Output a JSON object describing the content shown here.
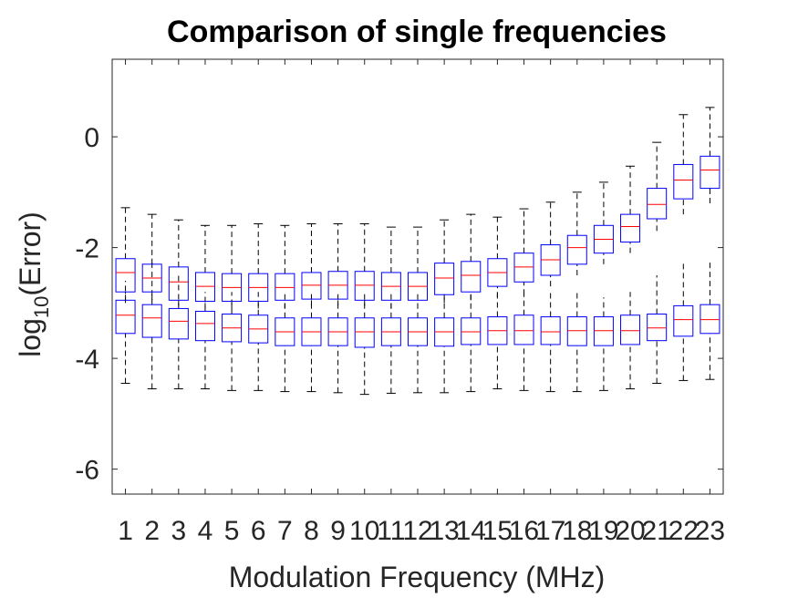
{
  "chart_data": {
    "type": "box",
    "title": "Comparison of single frequencies",
    "xlabel": "Modulation Frequency (MHz)",
    "ylabel_base": "log",
    "ylabel_sub": "10",
    "ylabel_rest": "(Error)",
    "categories": [
      "1",
      "2",
      "3",
      "4",
      "5",
      "6",
      "7",
      "8",
      "9",
      "10",
      "11",
      "12",
      "13",
      "14",
      "15",
      "16",
      "17",
      "18",
      "19",
      "20",
      "21",
      "22",
      "23"
    ],
    "ylim": [
      -6.45,
      1.4
    ],
    "yticks": [
      0,
      -2,
      -4,
      -6
    ],
    "ytick_labels": [
      "0",
      "-2",
      "-4",
      "-6"
    ],
    "colors": {
      "box": "#0000ff",
      "median": "#ff0000",
      "whisker": "#000000",
      "axis": "#262626"
    },
    "series": [
      {
        "boxes": [
          {
            "lw": -1.3,
            "q1": -2.8,
            "med": -2.45,
            "q3": -2.2,
            "uw": -1.28
          },
          {
            "lw": -1.4,
            "q1": -2.8,
            "med": -2.55,
            "q3": -2.3,
            "uw": -1.4
          },
          {
            "lw": -1.5,
            "q1": -2.95,
            "med": -2.62,
            "q3": -2.35,
            "uw": -1.5
          },
          {
            "lw": -1.6,
            "q1": -2.97,
            "med": -2.7,
            "q3": -2.45,
            "uw": -1.6
          },
          {
            "lw": -1.6,
            "q1": -2.97,
            "med": -2.72,
            "q3": -2.47,
            "uw": -1.6
          },
          {
            "lw": -1.6,
            "q1": -2.97,
            "med": -2.72,
            "q3": -2.47,
            "uw": -1.57
          },
          {
            "lw": -1.6,
            "q1": -2.95,
            "med": -2.72,
            "q3": -2.47,
            "uw": -1.6
          },
          {
            "lw": -1.6,
            "q1": -2.93,
            "med": -2.68,
            "q3": -2.45,
            "uw": -1.57
          },
          {
            "lw": -1.6,
            "q1": -2.93,
            "med": -2.68,
            "q3": -2.43,
            "uw": -1.57
          },
          {
            "lw": -1.6,
            "q1": -2.95,
            "med": -2.68,
            "q3": -2.43,
            "uw": -1.57
          },
          {
            "lw": -1.6,
            "q1": -2.95,
            "med": -2.7,
            "q3": -2.45,
            "uw": -1.63
          },
          {
            "lw": -1.6,
            "q1": -2.95,
            "med": -2.7,
            "q3": -2.45,
            "uw": -1.63
          },
          {
            "lw": -1.5,
            "q1": -2.85,
            "med": -2.55,
            "q3": -2.28,
            "uw": -1.5
          },
          {
            "lw": -1.4,
            "q1": -2.8,
            "med": -2.5,
            "q3": -2.25,
            "uw": -1.4
          },
          {
            "lw": -1.4,
            "q1": -2.7,
            "med": -2.45,
            "q3": -2.2,
            "uw": -1.45
          },
          {
            "lw": -1.3,
            "q1": -2.62,
            "med": -2.35,
            "q3": -2.1,
            "uw": -1.3
          },
          {
            "lw": -1.2,
            "q1": -2.5,
            "med": -2.22,
            "q3": -1.95,
            "uw": -1.18
          },
          {
            "lw": -1.0,
            "q1": -2.3,
            "med": -2.0,
            "q3": -1.78,
            "uw": -1.0
          },
          {
            "lw": -0.8,
            "q1": -2.1,
            "med": -1.85,
            "q3": -1.6,
            "uw": -0.82
          },
          {
            "lw": -0.5,
            "q1": -1.9,
            "med": -1.62,
            "q3": -1.4,
            "uw": -0.53
          },
          {
            "lw": -0.1,
            "q1": -1.48,
            "med": -1.22,
            "q3": -0.93,
            "uw": -0.1
          },
          {
            "lw": 0.4,
            "q1": -1.12,
            "med": -0.78,
            "q3": -0.5,
            "uw": 0.4
          },
          {
            "lw": 0.55,
            "q1": -0.93,
            "med": -0.6,
            "q3": -0.35,
            "uw": 0.53
          }
        ],
        "lower_whiskers": [
          -3.0,
          -2.95,
          -3.05,
          -3.1,
          -3.1,
          -3.1,
          -3.1,
          -3.05,
          -3.05,
          -3.05,
          -3.1,
          -3.1,
          -3.0,
          -2.95,
          -2.9,
          -2.85,
          -2.7,
          -2.5,
          -2.3,
          -2.1,
          -1.7,
          -1.4,
          -1.2
        ]
      },
      {
        "boxes": [
          {
            "q1": -3.55,
            "med": -3.22,
            "q3": -2.95
          },
          {
            "q1": -3.62,
            "med": -3.27,
            "q3": -3.03
          },
          {
            "q1": -3.65,
            "med": -3.33,
            "q3": -3.1
          },
          {
            "q1": -3.68,
            "med": -3.37,
            "q3": -3.15
          },
          {
            "q1": -3.7,
            "med": -3.45,
            "q3": -3.2
          },
          {
            "q1": -3.72,
            "med": -3.47,
            "q3": -3.22
          },
          {
            "q1": -3.77,
            "med": -3.52,
            "q3": -3.27
          },
          {
            "q1": -3.77,
            "med": -3.52,
            "q3": -3.27
          },
          {
            "q1": -3.77,
            "med": -3.52,
            "q3": -3.27
          },
          {
            "q1": -3.8,
            "med": -3.52,
            "q3": -3.27
          },
          {
            "q1": -3.77,
            "med": -3.52,
            "q3": -3.27
          },
          {
            "q1": -3.77,
            "med": -3.52,
            "q3": -3.27
          },
          {
            "q1": -3.78,
            "med": -3.52,
            "q3": -3.27
          },
          {
            "q1": -3.75,
            "med": -3.52,
            "q3": -3.27
          },
          {
            "q1": -3.75,
            "med": -3.5,
            "q3": -3.25
          },
          {
            "q1": -3.75,
            "med": -3.5,
            "q3": -3.22
          },
          {
            "q1": -3.75,
            "med": -3.52,
            "q3": -3.25
          },
          {
            "q1": -3.77,
            "med": -3.5,
            "q3": -3.25
          },
          {
            "q1": -3.77,
            "med": -3.5,
            "q3": -3.25
          },
          {
            "q1": -3.75,
            "med": -3.5,
            "q3": -3.22
          },
          {
            "q1": -3.68,
            "med": -3.45,
            "q3": -3.2
          },
          {
            "q1": -3.6,
            "med": -3.3,
            "q3": -3.05
          },
          {
            "q1": -3.55,
            "med": -3.3,
            "q3": -3.03
          }
        ],
        "lower_whiskers": [
          -4.45,
          -4.55,
          -4.55,
          -4.55,
          -4.58,
          -4.58,
          -4.6,
          -4.6,
          -4.62,
          -4.65,
          -4.63,
          -4.62,
          -4.62,
          -4.6,
          -4.55,
          -4.58,
          -4.6,
          -4.6,
          -4.58,
          -4.55,
          -4.45,
          -4.4,
          -4.38
        ],
        "upper_whiskers": [
          -2.6,
          -2.2,
          -2.5,
          -2.8,
          -2.8,
          -2.8,
          -2.8,
          -2.8,
          -2.8,
          -2.8,
          -2.8,
          -2.8,
          -2.8,
          -2.8,
          -2.8,
          -2.8,
          -2.8,
          -2.8,
          -2.9,
          -2.8,
          -2.5,
          -2.25,
          -2.25
        ]
      }
    ]
  }
}
